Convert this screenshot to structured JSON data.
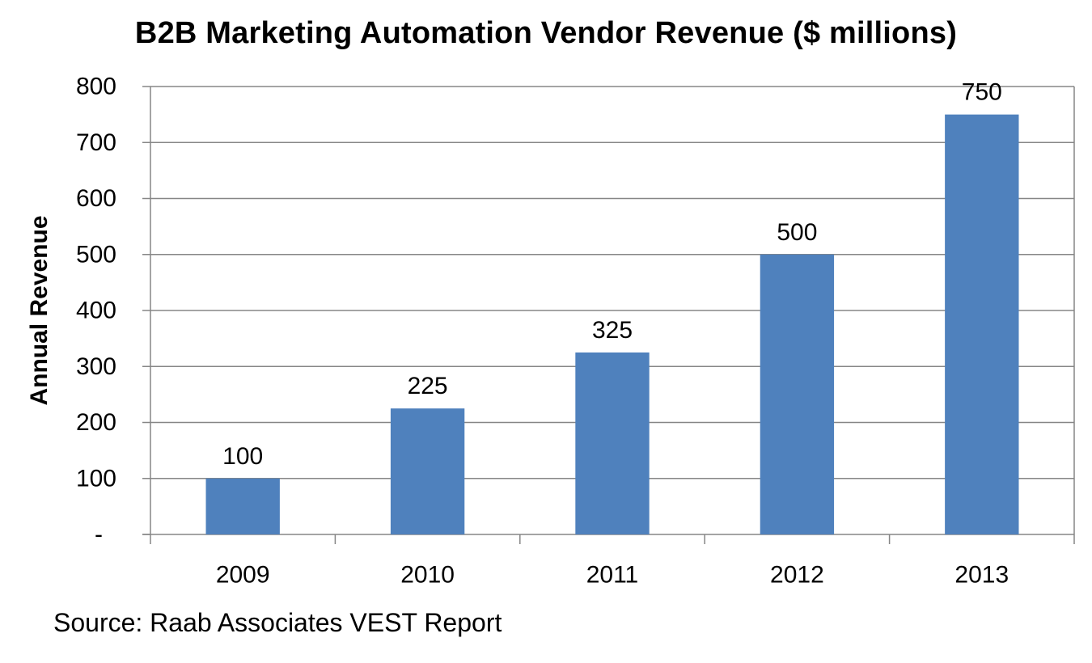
{
  "chart_data": {
    "type": "bar",
    "title": "B2B Marketing Automation Vendor Revenue ($ millions)",
    "xlabel": "",
    "ylabel": "Annual Revenue",
    "categories": [
      "2009",
      "2010",
      "2011",
      "2012",
      "2013"
    ],
    "values": [
      100,
      225,
      325,
      500,
      750
    ],
    "data_labels": [
      "100",
      "225",
      "325",
      "500",
      "750"
    ],
    "ylim": [
      0,
      800
    ],
    "y_ticks": [
      0,
      100,
      200,
      300,
      400,
      500,
      600,
      700,
      800
    ],
    "y_tick_labels": [
      "-",
      "100",
      "200",
      "300",
      "400",
      "500",
      "600",
      "700",
      "800"
    ],
    "grid": true,
    "legend": "none",
    "bar_color": "#4F81BD",
    "gridline_color": "#868686"
  },
  "footer": {
    "source": "Source: Raab Associates VEST Report"
  }
}
